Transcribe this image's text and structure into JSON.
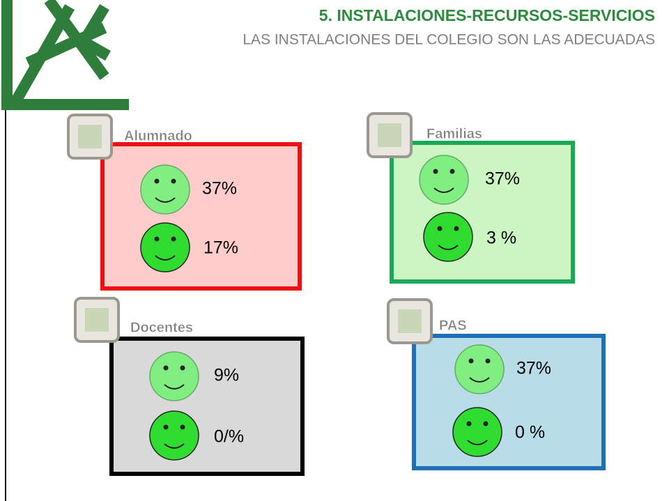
{
  "header": {
    "title": "5. INSTALACIONES-RECURSOS-SERVICIOS",
    "subtitle": "LAS INSTALACIONES DEL COLEGIO SON LAS ADECUADAS"
  },
  "groups": [
    {
      "label": "Alumnado",
      "values": [
        "37%",
        "17%"
      ]
    },
    {
      "label": "Familias",
      "values": [
        "37%",
        "3 %"
      ]
    },
    {
      "label": "Docentes",
      "values": [
        "9%",
        "0/%"
      ]
    },
    {
      "label": "PAS",
      "values": [
        "37%",
        "0 %"
      ]
    }
  ]
}
